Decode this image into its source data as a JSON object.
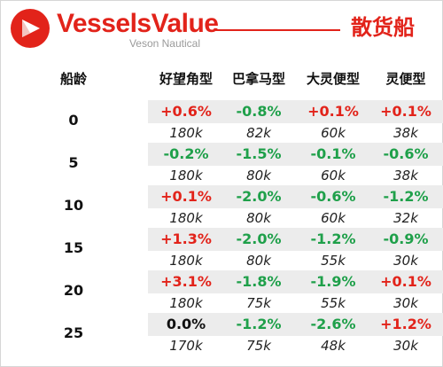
{
  "header": {
    "brand_name": "VesselsValue",
    "brand_sub": "Veson Nautical",
    "title": "散货船"
  },
  "colors": {
    "brand_red": "#e2231a",
    "positive": "#e2231a",
    "negative": "#1fa04a",
    "band_bg": "#ececec"
  },
  "table": {
    "age_header": "船龄",
    "columns": [
      "好望角型",
      "巴拿马型",
      "大灵便型",
      "灵便型"
    ],
    "rows": [
      {
        "age": "0",
        "changes": [
          "+0.6%",
          "-0.8%",
          "+0.1%",
          "+0.1%"
        ],
        "sizes": [
          "180k",
          "82k",
          "60k",
          "38k"
        ]
      },
      {
        "age": "5",
        "changes": [
          "-0.2%",
          "-1.5%",
          "-0.1%",
          "-0.6%"
        ],
        "sizes": [
          "180k",
          "80k",
          "60k",
          "38k"
        ]
      },
      {
        "age": "10",
        "changes": [
          "+0.1%",
          "-2.0%",
          "-0.6%",
          "-1.2%"
        ],
        "sizes": [
          "180k",
          "80k",
          "60k",
          "32k"
        ]
      },
      {
        "age": "15",
        "changes": [
          "+1.3%",
          "-2.0%",
          "-1.2%",
          "-0.9%"
        ],
        "sizes": [
          "180k",
          "80k",
          "55k",
          "30k"
        ]
      },
      {
        "age": "20",
        "changes": [
          "+3.1%",
          "-1.8%",
          "-1.9%",
          "+0.1%"
        ],
        "sizes": [
          "180k",
          "75k",
          "55k",
          "30k"
        ]
      },
      {
        "age": "25",
        "changes": [
          "0.0%",
          "-1.2%",
          "-2.6%",
          "+1.2%"
        ],
        "sizes": [
          "170k",
          "75k",
          "48k",
          "30k"
        ]
      }
    ]
  }
}
